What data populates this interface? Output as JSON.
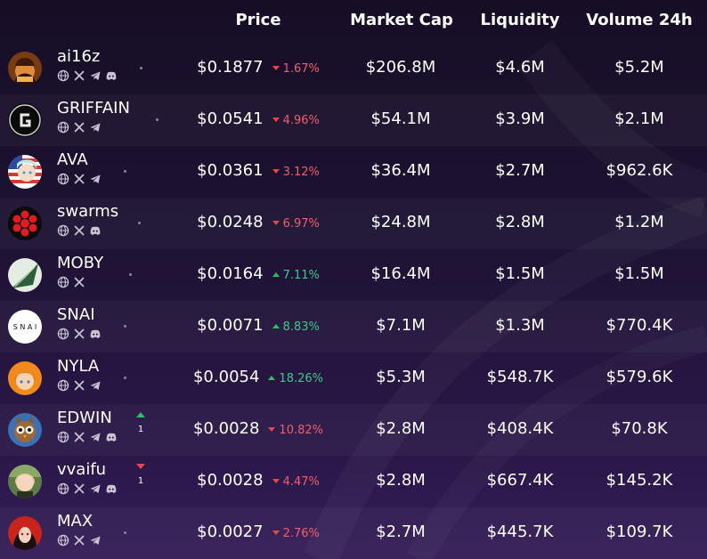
{
  "header": {
    "price": "Price",
    "market_cap": "Market Cap",
    "liquidity": "Liquidity",
    "volume": "Volume 24h"
  },
  "colors": {
    "up": "#3ec98a",
    "down": "#ef5f6c",
    "background": "#1d1232"
  },
  "rows": [
    {
      "name": "ai16z",
      "price": "$0.1877",
      "change": "1.67%",
      "direction": "down",
      "market_cap": "$206.8M",
      "liquidity": "$4.6M",
      "volume": "$5.2M",
      "socials": [
        "globe-icon",
        "x-icon",
        "telegram-icon",
        "discord-icon"
      ]
    },
    {
      "name": "GRIFFAIN",
      "price": "$0.0541",
      "change": "4.96%",
      "direction": "down",
      "market_cap": "$54.1M",
      "liquidity": "$3.9M",
      "volume": "$2.1M",
      "socials": [
        "globe-icon",
        "x-icon",
        "telegram-icon"
      ]
    },
    {
      "name": "AVA",
      "price": "$0.0361",
      "change": "3.12%",
      "direction": "down",
      "market_cap": "$36.4M",
      "liquidity": "$2.7M",
      "volume": "$962.6K",
      "socials": [
        "globe-icon",
        "x-icon",
        "telegram-icon"
      ]
    },
    {
      "name": "swarms",
      "price": "$0.0248",
      "change": "6.97%",
      "direction": "down",
      "market_cap": "$24.8M",
      "liquidity": "$2.8M",
      "volume": "$1.2M",
      "socials": [
        "globe-icon",
        "x-icon",
        "discord-icon"
      ]
    },
    {
      "name": "MOBY",
      "price": "$0.0164",
      "change": "7.11%",
      "direction": "up",
      "market_cap": "$16.4M",
      "liquidity": "$1.5M",
      "volume": "$1.5M",
      "socials": [
        "globe-icon",
        "x-icon"
      ]
    },
    {
      "name": "SNAI",
      "price": "$0.0071",
      "change": "8.83%",
      "direction": "up",
      "market_cap": "$7.1M",
      "liquidity": "$1.3M",
      "volume": "$770.4K",
      "socials": [
        "globe-icon",
        "x-icon",
        "discord-icon"
      ]
    },
    {
      "name": "NYLA",
      "price": "$0.0054",
      "change": "18.26%",
      "direction": "up",
      "market_cap": "$5.3M",
      "liquidity": "$548.7K",
      "volume": "$579.6K",
      "socials": [
        "globe-icon",
        "x-icon",
        "telegram-icon"
      ]
    },
    {
      "name": "EDWIN",
      "price": "$0.0028",
      "change": "10.82%",
      "direction": "down",
      "market_cap": "$2.8M",
      "liquidity": "$408.4K",
      "volume": "$70.8K",
      "socials": [
        "globe-icon",
        "x-icon",
        "telegram-icon",
        "discord-icon"
      ],
      "rank_change": "1",
      "rank_direction": "up"
    },
    {
      "name": "vvaifu",
      "price": "$0.0028",
      "change": "4.47%",
      "direction": "down",
      "market_cap": "$2.8M",
      "liquidity": "$667.4K",
      "volume": "$145.2K",
      "socials": [
        "globe-icon",
        "x-icon",
        "telegram-icon",
        "discord-icon"
      ],
      "rank_change": "1",
      "rank_direction": "down"
    },
    {
      "name": "MAX",
      "price": "$0.0027",
      "change": "2.76%",
      "direction": "down",
      "market_cap": "$2.7M",
      "liquidity": "$445.7K",
      "volume": "$109.7K",
      "socials": [
        "globe-icon",
        "x-icon",
        "telegram-icon"
      ]
    }
  ]
}
